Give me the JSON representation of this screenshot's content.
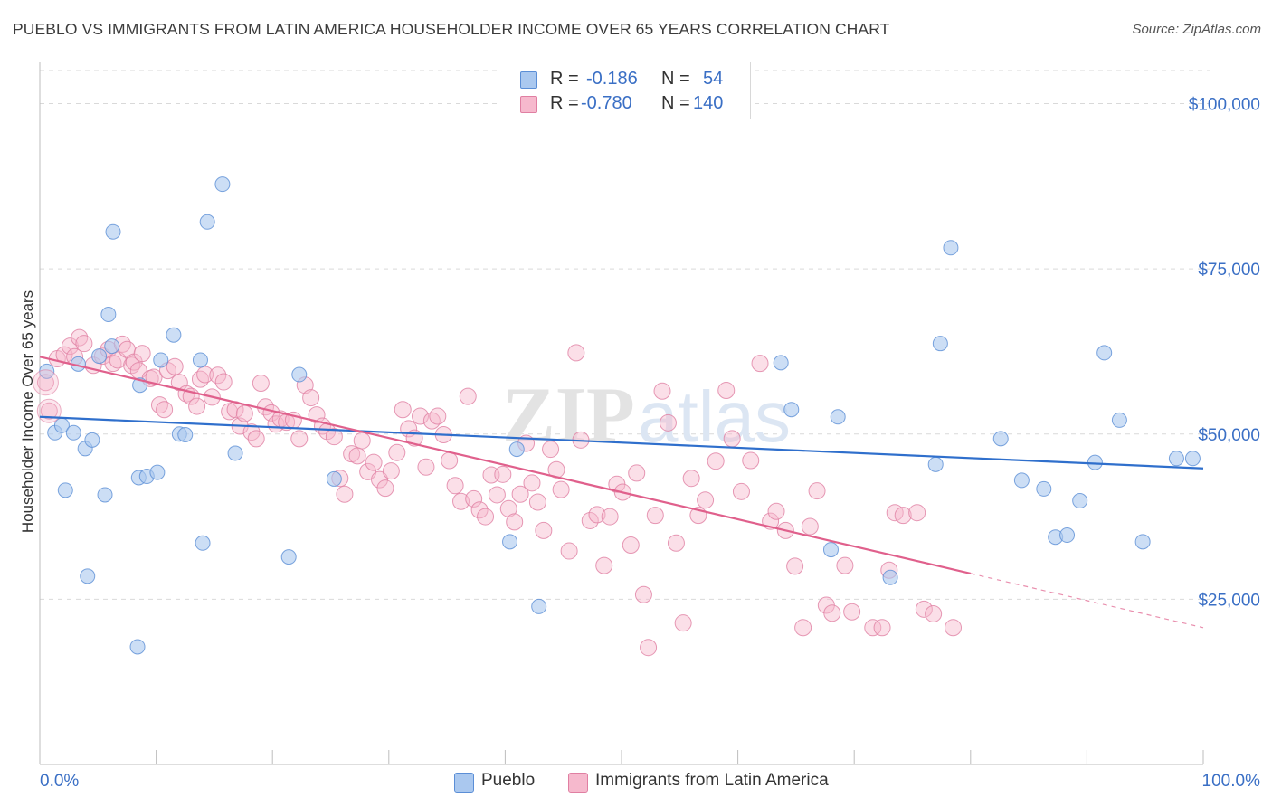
{
  "title": "PUEBLO VS IMMIGRANTS FROM LATIN AMERICA HOUSEHOLDER INCOME OVER 65 YEARS CORRELATION CHART",
  "source": "Source: ZipAtlas.com",
  "watermark": "ZIPatlas",
  "legend": {
    "rows": [
      {
        "r_label": "R =",
        "r_value": "-0.186",
        "n_label": "N =",
        "n_value": "54"
      },
      {
        "r_label": "R =",
        "r_value": "-0.780",
        "n_label": "N =",
        "n_value": "140"
      }
    ]
  },
  "bottom_legend": [
    {
      "label": "Pueblo"
    },
    {
      "label": "Immigrants from Latin America"
    }
  ],
  "colors": {
    "blue_fill": "#aac8ef",
    "blue_stroke": "#5b8ed6",
    "blue_line": "#2f6fcc",
    "pink_fill": "#f6b9cd",
    "pink_stroke": "#e07fa2",
    "pink_line": "#e0608c",
    "axis_text": "#3a6fc5",
    "grid": "#d9d9d9"
  },
  "chart_data": {
    "type": "scatter",
    "title": "PUEBLO VS IMMIGRANTS FROM LATIN AMERICA HOUSEHOLDER INCOME OVER 65 YEARS CORRELATION CHART",
    "xlabel": "",
    "ylabel": "Householder Income Over 65 years",
    "xlim": [
      0,
      100
    ],
    "ylim": [
      0,
      105000
    ],
    "x_tick_labels": [
      "0.0%",
      "100.0%"
    ],
    "y_ticks": [
      25000,
      50000,
      75000,
      100000
    ],
    "y_tick_labels": [
      "$25,000",
      "$50,000",
      "$75,000",
      "$100,000"
    ],
    "grid": true,
    "legend_position": "top-center",
    "series": [
      {
        "name": "Pueblo",
        "color": "#5b8ed6",
        "r": -0.186,
        "n": 54,
        "trend": {
          "x": [
            0,
            100
          ],
          "y": [
            52600,
            44800
          ],
          "dashed_from": null
        },
        "points": [
          [
            0.6,
            59500
          ],
          [
            1.3,
            50200
          ],
          [
            1.9,
            51300
          ],
          [
            2.2,
            41500
          ],
          [
            2.9,
            50200
          ],
          [
            3.3,
            60600
          ],
          [
            3.9,
            47800
          ],
          [
            4.1,
            28500
          ],
          [
            4.5,
            49100
          ],
          [
            5.1,
            61800
          ],
          [
            5.6,
            40800
          ],
          [
            5.9,
            68100
          ],
          [
            6.2,
            63300
          ],
          [
            6.3,
            80600
          ],
          [
            8.5,
            43400
          ],
          [
            8.6,
            57400
          ],
          [
            8.4,
            17800
          ],
          [
            9.2,
            43600
          ],
          [
            10.1,
            44200
          ],
          [
            10.4,
            61200
          ],
          [
            11.5,
            65000
          ],
          [
            12.0,
            50000
          ],
          [
            12.5,
            49900
          ],
          [
            13.8,
            61200
          ],
          [
            14.0,
            33500
          ],
          [
            14.4,
            82100
          ],
          [
            15.7,
            87800
          ],
          [
            16.8,
            47100
          ],
          [
            21.4,
            31400
          ],
          [
            22.3,
            59000
          ],
          [
            25.3,
            43200
          ],
          [
            40.4,
            33700
          ],
          [
            41.0,
            47700
          ],
          [
            42.9,
            23900
          ],
          [
            63.7,
            60800
          ],
          [
            64.6,
            53700
          ],
          [
            68.0,
            32500
          ],
          [
            68.6,
            52600
          ],
          [
            73.1,
            28300
          ],
          [
            77.0,
            45400
          ],
          [
            77.4,
            63700
          ],
          [
            78.3,
            78200
          ],
          [
            82.6,
            49300
          ],
          [
            84.4,
            43000
          ],
          [
            86.3,
            41700
          ],
          [
            87.3,
            34400
          ],
          [
            88.3,
            34700
          ],
          [
            89.4,
            39900
          ],
          [
            90.7,
            45700
          ],
          [
            91.5,
            62300
          ],
          [
            92.8,
            52100
          ],
          [
            94.8,
            33700
          ],
          [
            97.7,
            46300
          ],
          [
            99.1,
            46300
          ]
        ]
      },
      {
        "name": "Immigrants from Latin America",
        "color": "#e07fa2",
        "r": -0.78,
        "n": 140,
        "trend": {
          "x": [
            0,
            100
          ],
          "y": [
            61700,
            20700
          ],
          "dashed_from": 80
        },
        "points": [
          [
            0.5,
            57800
          ],
          [
            0.8,
            53500
          ],
          [
            1.5,
            61400
          ],
          [
            2.1,
            62000
          ],
          [
            2.6,
            63300
          ],
          [
            3.0,
            61700
          ],
          [
            3.4,
            64600
          ],
          [
            3.8,
            63700
          ],
          [
            4.6,
            60400
          ],
          [
            5.4,
            61800
          ],
          [
            5.9,
            62800
          ],
          [
            6.3,
            60700
          ],
          [
            6.7,
            61200
          ],
          [
            7.1,
            63600
          ],
          [
            7.5,
            62800
          ],
          [
            7.9,
            60400
          ],
          [
            8.1,
            60900
          ],
          [
            8.5,
            59600
          ],
          [
            8.8,
            62200
          ],
          [
            9.5,
            58400
          ],
          [
            9.8,
            58600
          ],
          [
            10.3,
            54400
          ],
          [
            10.7,
            53700
          ],
          [
            11.0,
            59600
          ],
          [
            11.6,
            60200
          ],
          [
            12.0,
            57800
          ],
          [
            12.6,
            56100
          ],
          [
            13.0,
            55700
          ],
          [
            13.5,
            54200
          ],
          [
            13.8,
            58300
          ],
          [
            14.2,
            59000
          ],
          [
            14.8,
            55600
          ],
          [
            15.3,
            58900
          ],
          [
            15.8,
            57900
          ],
          [
            16.3,
            53400
          ],
          [
            16.8,
            53700
          ],
          [
            17.2,
            51200
          ],
          [
            17.6,
            53100
          ],
          [
            18.2,
            50300
          ],
          [
            18.6,
            49300
          ],
          [
            19.0,
            57700
          ],
          [
            19.4,
            54100
          ],
          [
            19.9,
            53200
          ],
          [
            20.3,
            51500
          ],
          [
            20.7,
            52300
          ],
          [
            21.2,
            51800
          ],
          [
            21.8,
            52100
          ],
          [
            22.3,
            49300
          ],
          [
            22.8,
            57400
          ],
          [
            23.3,
            55500
          ],
          [
            23.8,
            52900
          ],
          [
            24.3,
            51200
          ],
          [
            24.7,
            50400
          ],
          [
            25.3,
            49600
          ],
          [
            25.8,
            43300
          ],
          [
            26.2,
            40900
          ],
          [
            26.8,
            47000
          ],
          [
            27.3,
            46700
          ],
          [
            27.7,
            49000
          ],
          [
            28.2,
            44300
          ],
          [
            28.7,
            45700
          ],
          [
            29.2,
            43100
          ],
          [
            29.7,
            41800
          ],
          [
            30.2,
            44400
          ],
          [
            30.7,
            47200
          ],
          [
            31.2,
            53700
          ],
          [
            31.7,
            50800
          ],
          [
            32.2,
            49400
          ],
          [
            32.7,
            52700
          ],
          [
            33.2,
            45000
          ],
          [
            33.7,
            52000
          ],
          [
            34.2,
            52700
          ],
          [
            34.7,
            49900
          ],
          [
            35.2,
            46000
          ],
          [
            35.7,
            42200
          ],
          [
            36.2,
            39800
          ],
          [
            36.8,
            55700
          ],
          [
            37.3,
            40200
          ],
          [
            37.8,
            38500
          ],
          [
            38.3,
            37500
          ],
          [
            38.8,
            43800
          ],
          [
            39.3,
            40800
          ],
          [
            39.8,
            43900
          ],
          [
            40.3,
            38700
          ],
          [
            40.8,
            36700
          ],
          [
            41.3,
            40900
          ],
          [
            41.8,
            48600
          ],
          [
            42.3,
            42600
          ],
          [
            42.8,
            39700
          ],
          [
            43.3,
            35400
          ],
          [
            43.9,
            47700
          ],
          [
            44.4,
            44600
          ],
          [
            44.8,
            41600
          ],
          [
            45.5,
            32300
          ],
          [
            46.1,
            62300
          ],
          [
            46.5,
            49100
          ],
          [
            47.3,
            36900
          ],
          [
            47.9,
            37800
          ],
          [
            48.5,
            30100
          ],
          [
            49.0,
            37500
          ],
          [
            49.6,
            42400
          ],
          [
            50.1,
            41200
          ],
          [
            50.8,
            33200
          ],
          [
            51.3,
            44100
          ],
          [
            51.9,
            25700
          ],
          [
            52.3,
            17700
          ],
          [
            52.9,
            37700
          ],
          [
            53.5,
            56500
          ],
          [
            54.0,
            51700
          ],
          [
            54.7,
            33500
          ],
          [
            55.3,
            21400
          ],
          [
            56.0,
            43300
          ],
          [
            56.6,
            37700
          ],
          [
            57.2,
            40000
          ],
          [
            58.1,
            45900
          ],
          [
            59.0,
            56600
          ],
          [
            59.5,
            49300
          ],
          [
            60.3,
            41300
          ],
          [
            61.1,
            46000
          ],
          [
            61.9,
            60700
          ],
          [
            62.8,
            36800
          ],
          [
            63.3,
            38300
          ],
          [
            64.1,
            35400
          ],
          [
            64.9,
            30000
          ],
          [
            65.6,
            20700
          ],
          [
            66.2,
            36000
          ],
          [
            66.8,
            41400
          ],
          [
            67.6,
            24100
          ],
          [
            68.1,
            22900
          ],
          [
            69.2,
            30100
          ],
          [
            69.8,
            23100
          ],
          [
            71.6,
            20700
          ],
          [
            72.4,
            20700
          ],
          [
            73.0,
            29400
          ],
          [
            73.5,
            38100
          ],
          [
            74.2,
            37700
          ],
          [
            75.4,
            38100
          ],
          [
            76.0,
            23500
          ],
          [
            76.8,
            22800
          ],
          [
            78.5,
            20700
          ]
        ]
      }
    ]
  }
}
